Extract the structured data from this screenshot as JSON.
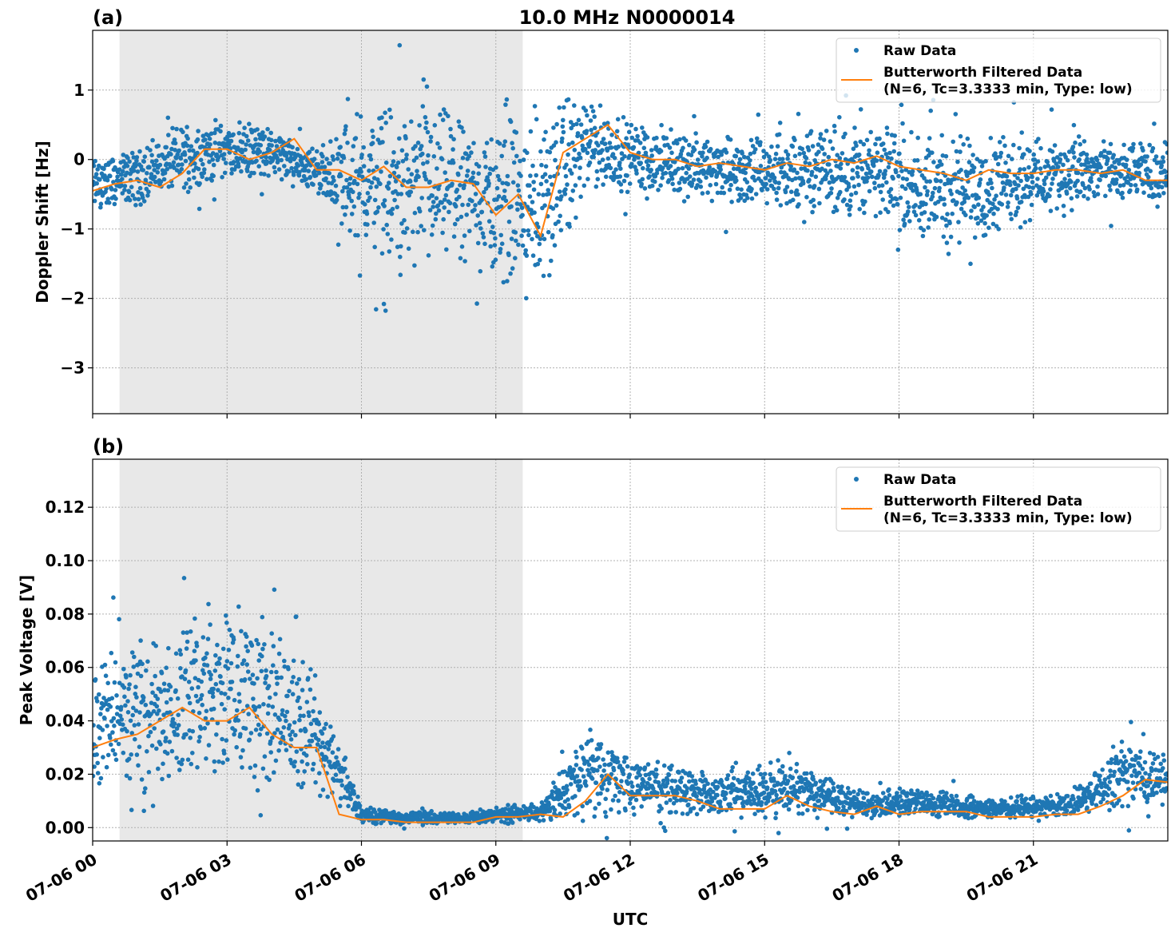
{
  "title": "10.0 MHz N0000014",
  "xlabel": "UTC",
  "x_ticks": [
    "07-06 00",
    "07-06 03",
    "07-06 06",
    "07-06 09",
    "07-06 12",
    "07-06 15",
    "07-06 18",
    "07-06 21"
  ],
  "colors": {
    "raw": "#1f77b4",
    "filtered": "#ff7f0e",
    "shade": "#e8e8e8"
  },
  "chart_data": [
    {
      "type": "scatter",
      "panel_label": "(a)",
      "ylabel": "Doppler Shift [Hz]",
      "xlim_hours": [
        0,
        24
      ],
      "ylim": [
        -3.66,
        1.86
      ],
      "y_ticks": [
        1,
        0,
        -1,
        -2,
        -3
      ],
      "y_tick_labels": [
        "1",
        "0",
        "−1",
        "−2",
        "−3"
      ],
      "grid": true,
      "legend_placement": "top-right",
      "shaded_span_hours": [
        0.6,
        9.6
      ],
      "legend": {
        "raw": "Raw Data",
        "filtered_1": "Butterworth Filtered Data",
        "filtered_2": "(N=6, Tc=3.3333 min, Type: low)"
      },
      "raw_band": {
        "hours": [
          0,
          1,
          2,
          3,
          4,
          5,
          6,
          7,
          8,
          9,
          10,
          11,
          12,
          13,
          14,
          15,
          16,
          17,
          18,
          19,
          20,
          21,
          22,
          23,
          24
        ],
        "lo": [
          -0.8,
          -0.7,
          -0.5,
          -0.3,
          -0.3,
          -0.5,
          -1.5,
          -1.8,
          -1.5,
          -1.9,
          -2.2,
          -0.6,
          -0.5,
          -0.6,
          -0.7,
          -0.8,
          -0.8,
          -0.9,
          -1.0,
          -1.4,
          -1.2,
          -0.9,
          -0.8,
          -0.7,
          -0.7
        ],
        "hi": [
          0.1,
          0.2,
          0.6,
          0.6,
          0.5,
          0.2,
          0.9,
          0.9,
          0.8,
          0.6,
          1.0,
          1.0,
          0.6,
          0.5,
          0.4,
          0.4,
          0.5,
          0.6,
          0.5,
          0.4,
          0.5,
          0.4,
          0.4,
          0.3,
          0.3
        ]
      },
      "filtered": {
        "hours_step": 0.5,
        "values": [
          -0.45,
          -0.35,
          -0.3,
          -0.4,
          -0.2,
          0.15,
          0.15,
          0.0,
          0.1,
          0.3,
          -0.15,
          -0.15,
          -0.3,
          -0.1,
          -0.4,
          -0.4,
          -0.3,
          -0.35,
          -0.8,
          -0.5,
          -1.1,
          0.1,
          0.3,
          0.5,
          0.1,
          0.0,
          0.0,
          -0.1,
          -0.05,
          -0.1,
          -0.15,
          -0.05,
          -0.1,
          0.0,
          -0.05,
          0.05,
          -0.1,
          -0.15,
          -0.2,
          -0.3,
          -0.15,
          -0.2,
          -0.2,
          -0.15,
          -0.15,
          -0.2,
          -0.15,
          -0.3,
          -0.3
        ]
      }
    },
    {
      "type": "scatter",
      "panel_label": "(b)",
      "ylabel": "Peak Voltage [V]",
      "xlim_hours": [
        0,
        24
      ],
      "ylim": [
        -0.005,
        0.138
      ],
      "y_ticks": [
        0,
        0.02,
        0.04,
        0.06,
        0.08,
        0.1,
        0.12
      ],
      "y_tick_labels": [
        "0.00",
        "0.02",
        "0.04",
        "0.06",
        "0.08",
        "0.10",
        "0.12"
      ],
      "grid": true,
      "legend_placement": "top-right",
      "shaded_span_hours": [
        0.6,
        9.6
      ],
      "legend": {
        "raw": "Raw Data",
        "filtered_1": "Butterworth Filtered Data",
        "filtered_2": "(N=6, Tc=3.3333 min, Type: low)"
      },
      "raw_band": {
        "hours": [
          0,
          1,
          2,
          3,
          4,
          5,
          6,
          7,
          8,
          9,
          10,
          11,
          12,
          13,
          14,
          15,
          16,
          17,
          18,
          19,
          20,
          21,
          22,
          23,
          24
        ],
        "lo": [
          0.01,
          0.012,
          0.015,
          0.015,
          0.012,
          0.01,
          0.001,
          0.001,
          0.001,
          0.001,
          0.002,
          0.004,
          0.004,
          0.004,
          0.003,
          0.003,
          0.003,
          0.003,
          0.003,
          0.003,
          0.003,
          0.003,
          0.004,
          0.006,
          0.008
        ],
        "hi": [
          0.07,
          0.07,
          0.08,
          0.09,
          0.08,
          0.06,
          0.01,
          0.006,
          0.006,
          0.008,
          0.01,
          0.04,
          0.03,
          0.025,
          0.02,
          0.025,
          0.025,
          0.015,
          0.015,
          0.015,
          0.012,
          0.012,
          0.015,
          0.035,
          0.03
        ]
      },
      "filtered": {
        "hours_step": 0.5,
        "values": [
          0.03,
          0.033,
          0.035,
          0.04,
          0.045,
          0.04,
          0.04,
          0.045,
          0.035,
          0.03,
          0.03,
          0.005,
          0.003,
          0.003,
          0.002,
          0.002,
          0.002,
          0.002,
          0.004,
          0.004,
          0.005,
          0.004,
          0.01,
          0.02,
          0.012,
          0.012,
          0.012,
          0.01,
          0.007,
          0.007,
          0.007,
          0.012,
          0.008,
          0.006,
          0.005,
          0.008,
          0.005,
          0.006,
          0.006,
          0.006,
          0.004,
          0.004,
          0.004,
          0.005,
          0.005,
          0.008,
          0.012,
          0.018,
          0.017
        ]
      }
    }
  ]
}
